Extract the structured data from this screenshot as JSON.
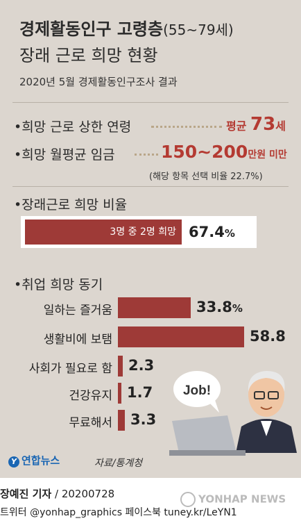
{
  "title": {
    "main": "경제활동인구 고령층",
    "main_sub": "(55~79세)",
    "second": "장래 근로 희망 현황"
  },
  "survey": "2020년 5월 경제활동인구조사 결과",
  "age_limit": {
    "label": "희망 근로 상한 연령",
    "prefix": "평균",
    "value": "73",
    "unit": "세"
  },
  "wage": {
    "label": "희망 월평균 임금",
    "value": "150~200",
    "unit": "만원 미만",
    "note": "(해당 항목 선택 비율 22.7%)"
  },
  "ratio": {
    "label": "장래근로 희망 비율",
    "inner": "3명 중 2명 희망",
    "value": 67.4,
    "value_text": "67.4",
    "unit": "%"
  },
  "chart_data": {
    "type": "bar",
    "title": "취업 희망 동기",
    "categories": [
      "일하는 즐거움",
      "생활비에 보탬",
      "사회가 필요로 함",
      "건강유지",
      "무료해서"
    ],
    "values": [
      33.8,
      58.8,
      2.3,
      1.7,
      3.3
    ],
    "value_labels": [
      "33.8",
      "58.8",
      "2.3",
      "1.7",
      "3.3"
    ],
    "unit": "%",
    "bar_color": "#9e3a37"
  },
  "illustration": {
    "speech": "Job!"
  },
  "footer": {
    "logo": "연합뉴스",
    "logo_mark": "Y",
    "source": "자료/통계청",
    "reporter_name": "장예진 기자",
    "reporter_date": "/ 20200728",
    "contact": "트위터 @yonhap_graphics  페이스북 tuney.kr/LeYN1",
    "watermark": "YONHAP NEWS"
  },
  "colors": {
    "panel": "#dcd6cf",
    "accent": "#b43a32",
    "bar": "#9e3a37"
  }
}
